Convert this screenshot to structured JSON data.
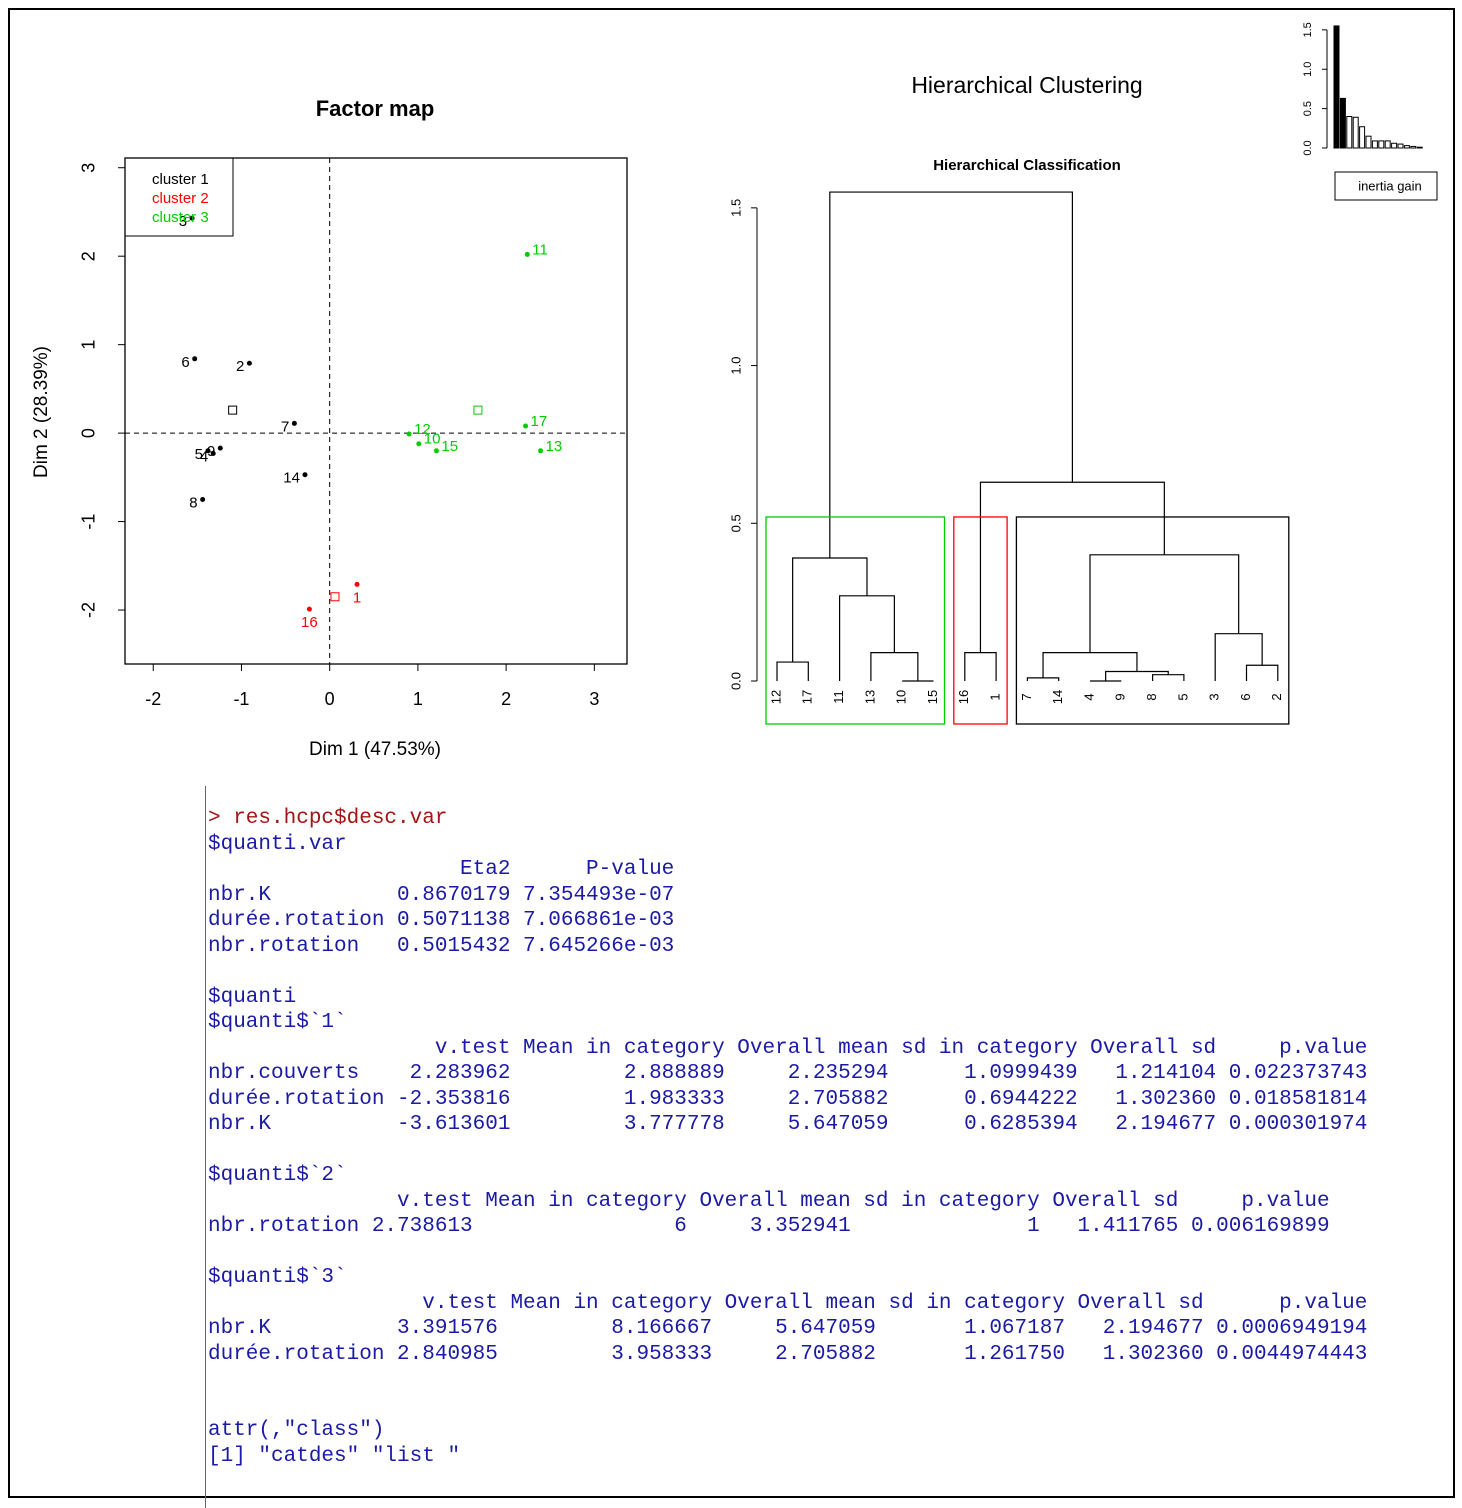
{
  "chart_data": [
    {
      "type": "scatter",
      "title": "Factor map",
      "x_label": "Dim 1 (47.53%)",
      "y_label": "Dim 2 (28.39%)",
      "xlim": [
        -2.32,
        3.37
      ],
      "ylim": [
        -2.61,
        3.11
      ],
      "xticks": [
        -2,
        -1,
        0,
        1,
        2,
        3
      ],
      "yticks": [
        -2,
        -1,
        0,
        1,
        2,
        3
      ],
      "legend": "top-left",
      "series": [
        {
          "name": "cluster 1",
          "color": "#000000",
          "labels": [
            "3",
            "6",
            "2",
            "7",
            "5",
            "4",
            "9",
            "14",
            "8"
          ],
          "x": [
            -1.56,
            -1.53,
            -0.91,
            -0.4,
            -1.38,
            -1.32,
            -1.24,
            -0.28,
            -1.44
          ],
          "y": [
            2.43,
            0.84,
            0.79,
            0.11,
            -0.2,
            -0.23,
            -0.17,
            -0.47,
            -0.75
          ],
          "center": [
            -1.1,
            0.26
          ]
        },
        {
          "name": "cluster 2",
          "color": "#ff0000",
          "labels": [
            "1",
            "16"
          ],
          "x": [
            0.31,
            -0.23
          ],
          "y": [
            -1.71,
            -1.99
          ],
          "center": [
            0.06,
            -1.85
          ]
        },
        {
          "name": "cluster 3",
          "color": "#00cd00",
          "labels": [
            "11",
            "12",
            "10",
            "15",
            "17",
            "13"
          ],
          "x": [
            2.24,
            0.9,
            1.01,
            1.21,
            2.22,
            2.39
          ],
          "y": [
            2.02,
            -0.01,
            -0.12,
            -0.2,
            0.08,
            -0.2
          ],
          "center": [
            1.68,
            0.26
          ]
        }
      ]
    },
    {
      "type": "dendrogram",
      "suptitle": "Hierarchical Clustering",
      "title": "Hierarchical Classification",
      "labels": [
        "12",
        "17",
        "11",
        "13",
        "10",
        "15",
        "16",
        "1",
        "7",
        "14",
        "4",
        "9",
        "8",
        "5",
        "3",
        "6",
        "2"
      ],
      "merges": [
        {
          "pair": [
            -5,
            -6
          ],
          "height": 0.0
        },
        {
          "pair": [
            -11,
            -12
          ],
          "height": 0.0
        },
        {
          "pair": [
            -9,
            -10
          ],
          "height": 0.01
        },
        {
          "pair": [
            -13,
            -14
          ],
          "height": 0.02
        },
        {
          "pair": [
            2,
            4
          ],
          "height": 0.03
        },
        {
          "pair": [
            -16,
            -17
          ],
          "height": 0.05
        },
        {
          "pair": [
            -1,
            -2
          ],
          "height": 0.06
        },
        {
          "pair": [
            -4,
            1
          ],
          "height": 0.09
        },
        {
          "pair": [
            -7,
            -8
          ],
          "height": 0.09
        },
        {
          "pair": [
            3,
            5
          ],
          "height": 0.09
        },
        {
          "pair": [
            -15,
            6
          ],
          "height": 0.15
        },
        {
          "pair": [
            -3,
            8
          ],
          "height": 0.27
        },
        {
          "pair": [
            7,
            12
          ],
          "height": 0.39
        },
        {
          "pair": [
            10,
            11
          ],
          "height": 0.4
        },
        {
          "pair": [
            9,
            14
          ],
          "height": 0.63
        },
        {
          "pair": [
            13,
            15
          ],
          "height": 1.55
        }
      ],
      "ylim": [
        0,
        1.62
      ],
      "yticks": [
        {
          "value": 0,
          "label": "0.0"
        },
        {
          "value": 0.5,
          "label": "0.5"
        },
        {
          "value": 1,
          "label": "1.0"
        },
        {
          "value": 1.5,
          "label": "1.5"
        }
      ],
      "rect_top": 0.52,
      "rect_colors": [
        "#00cd00",
        "#ff0000",
        "#000000"
      ]
    },
    {
      "type": "bar",
      "legend_label": "inertia gain",
      "values": [
        1.55,
        0.63,
        0.4,
        0.39,
        0.27,
        0.15,
        0.09,
        0.09,
        0.09,
        0.06,
        0.05,
        0.03,
        0.02,
        0.01,
        0.0,
        0.0
      ],
      "colors": [
        "#000000",
        "#000000",
        "#ffffff",
        "#ffffff",
        "#ffffff",
        "#ffffff",
        "#ffffff",
        "#ffffff",
        "#ffffff",
        "#ffffff",
        "#ffffff",
        "#ffffff",
        "#ffffff",
        "#ffffff",
        "#ffffff",
        "#ffffff"
      ],
      "ylim": [
        0,
        1.6
      ],
      "yticks": [
        {
          "value": 0,
          "label": "0.0"
        },
        {
          "value": 0.5,
          "label": "0.5"
        },
        {
          "value": 1,
          "label": "1.0"
        },
        {
          "value": 1.5,
          "label": "1.5"
        }
      ]
    }
  ],
  "console": {
    "command": "> res.hcpc$desc.var",
    "blocks": [
      [
        "$quanti.var",
        "                    Eta2      P-value",
        "nbr.K          0.8670179 7.354493e-07",
        "durée.rotation 0.5071138 7.066861e-03",
        "nbr.rotation   0.5015432 7.645266e-03"
      ],
      [
        "$quanti",
        "$quanti$`1`",
        "                  v.test Mean in category Overall mean sd in category Overall sd     p.value",
        "nbr.couverts    2.283962         2.888889     2.235294      1.0999439   1.214104 0.022373743",
        "durée.rotation -2.353816         1.983333     2.705882      0.6944222   1.302360 0.018581814",
        "nbr.K          -3.613601         3.777778     5.647059      0.6285394   2.194677 0.000301974"
      ],
      [
        "$quanti$`2`",
        "               v.test Mean in category Overall mean sd in category Overall sd     p.value",
        "nbr.rotation 2.738613                6     3.352941              1   1.411765 0.006169899"
      ],
      [
        "$quanti$`3`",
        "                 v.test Mean in category Overall mean sd in category Overall sd      p.value",
        "nbr.K          3.391576         8.166667     5.647059       1.067187   2.194677 0.0006949194",
        "durée.rotation 2.840985         3.958333     2.705882       1.261750   1.302360 0.0044974443"
      ],
      [
        "attr(,\"class\")",
        "[1] \"catdes\" \"list \""
      ]
    ]
  }
}
